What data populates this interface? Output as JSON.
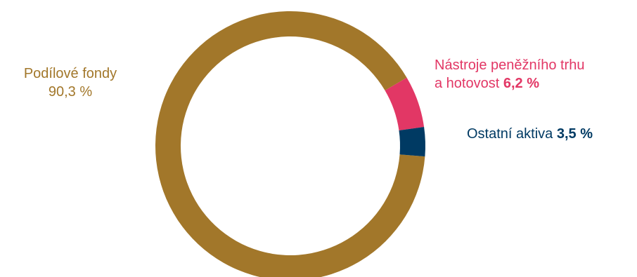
{
  "chart_data": {
    "type": "pie",
    "title": "",
    "donut": true,
    "series": [
      {
        "name": "Podílové fondy",
        "label_line1": "Podílové fondy",
        "value_label": "90,3 %",
        "value": 90.3,
        "color": "#A2772A"
      },
      {
        "name": "Nástroje peněžního trhu a hotovost",
        "label_line1": "Nástroje peněžního trhu",
        "label_line2": "a hotovost",
        "value_label": "6,2 %",
        "value": 6.2,
        "color": "#E23765"
      },
      {
        "name": "Ostatní aktiva",
        "label_line1": "Ostatní aktiva",
        "value_label": "3,5 %",
        "value": 3.5,
        "color": "#003A63"
      }
    ]
  }
}
